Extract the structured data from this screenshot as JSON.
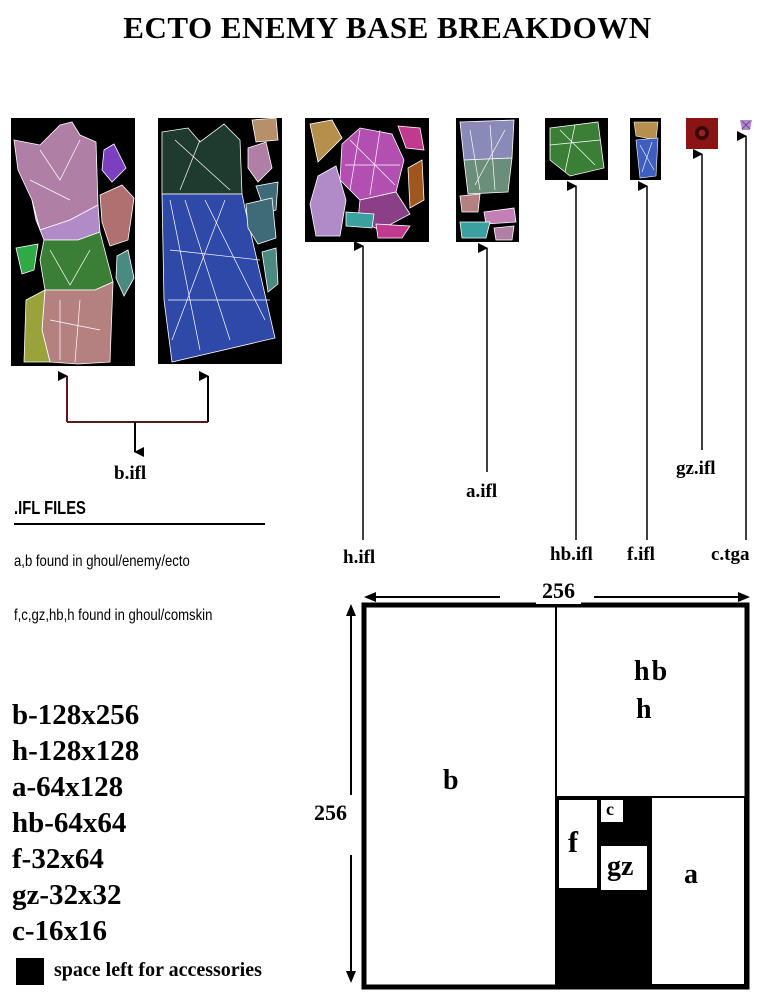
{
  "title": "ECTO ENEMY BASE BREAKDOWN",
  "labels": {
    "b": "b.ifl",
    "h": "h.ifl",
    "a": "a.ifl",
    "hb": "hb.ifl",
    "f": "f.ifl",
    "gz": "gz.ifl",
    "c": "c.tga"
  },
  "notes": {
    "heading": ".IFL FILES",
    "line1": "a,b found in ghoul/enemy/ecto",
    "line2": "f,c,gz,hb,h found in ghoul/comskin"
  },
  "sizes": [
    "b-128x256",
    "h-128x128",
    "a-64x128",
    "hb-64x64",
    "f-32x64",
    "gz-32x32",
    "c-16x16"
  ],
  "legend": "space left for accessories",
  "layout": {
    "width_label": "256",
    "height_label": "256",
    "cells": {
      "b": "b",
      "hbh": [
        "hb",
        "h"
      ],
      "f": "f",
      "c": "c",
      "gz": "gz",
      "a": "a"
    }
  },
  "colors": {
    "blue": "#2f49a8",
    "green": "#3a7f35",
    "pink": "#b07fa6",
    "magenta": "#b44fb2",
    "lavender": "#b08bc8",
    "darkgreen": "#1f3a2e",
    "red": "#8a1414"
  }
}
